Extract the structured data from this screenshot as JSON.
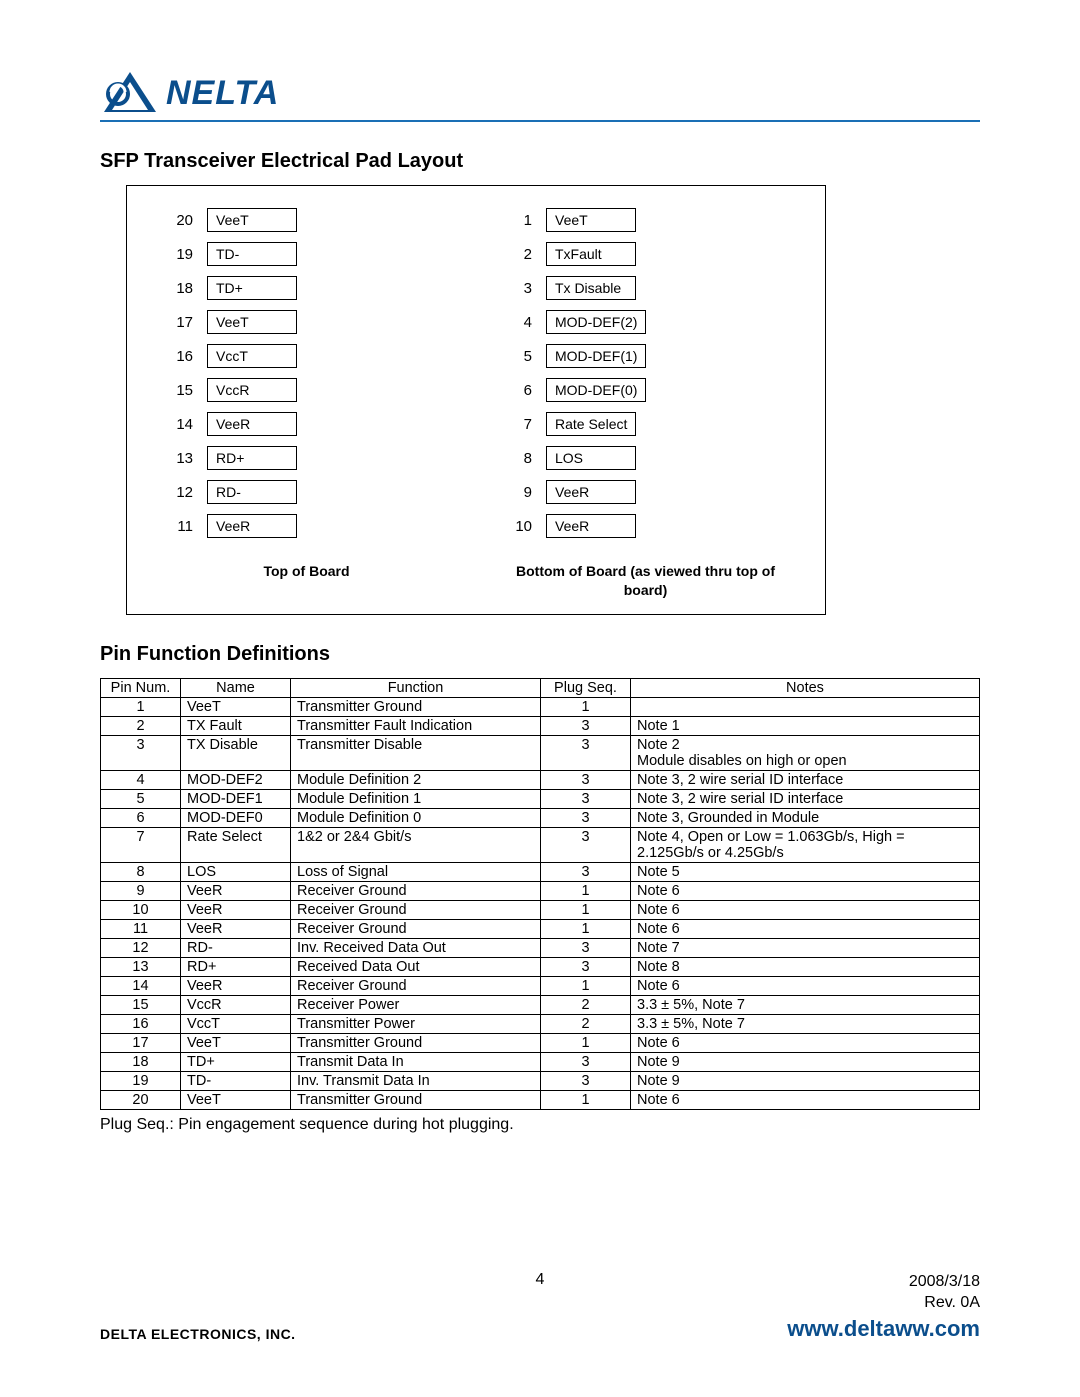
{
  "brand": {
    "name": "NELTA"
  },
  "sections": {
    "pad_layout_title": "SFP Transceiver Electrical Pad Layout",
    "pin_defs_title": "Pin Function Definitions"
  },
  "pad_layout": {
    "left_caption": "Top of Board",
    "right_caption": "Bottom of Board (as viewed thru top of board)",
    "left": [
      {
        "num": "20",
        "label": "VeeT"
      },
      {
        "num": "19",
        "label": "TD-"
      },
      {
        "num": "18",
        "label": "TD+"
      },
      {
        "num": "17",
        "label": "VeeT"
      },
      {
        "num": "16",
        "label": "VccT"
      },
      {
        "num": "15",
        "label": "VccR"
      },
      {
        "num": "14",
        "label": "VeeR"
      },
      {
        "num": "13",
        "label": "RD+"
      },
      {
        "num": "12",
        "label": "RD-"
      },
      {
        "num": "11",
        "label": "VeeR"
      }
    ],
    "right": [
      {
        "num": "1",
        "label": "VeeT"
      },
      {
        "num": "2",
        "label": "TxFault"
      },
      {
        "num": "3",
        "label": "Tx Disable"
      },
      {
        "num": "4",
        "label": "MOD-DEF(2)"
      },
      {
        "num": "5",
        "label": "MOD-DEF(1)"
      },
      {
        "num": "6",
        "label": "MOD-DEF(0)"
      },
      {
        "num": "7",
        "label": "Rate Select"
      },
      {
        "num": "8",
        "label": "LOS"
      },
      {
        "num": "9",
        "label": "VeeR"
      },
      {
        "num": "10",
        "label": "VeeR"
      }
    ]
  },
  "pin_table": {
    "columns": [
      "Pin Num.",
      "Name",
      "Function",
      "Plug Seq.",
      "Notes"
    ],
    "col_widths": [
      "80px",
      "110px",
      "250px",
      "90px",
      "auto"
    ],
    "rows": [
      [
        "1",
        "VeeT",
        "Transmitter Ground",
        "1",
        ""
      ],
      [
        "2",
        "TX Fault",
        "Transmitter Fault Indication",
        "3",
        "Note 1"
      ],
      [
        "3",
        "TX Disable",
        "Transmitter Disable",
        "3",
        "Note 2\nModule disables on high or open"
      ],
      [
        "4",
        "MOD-DEF2",
        "Module Definition 2",
        "3",
        "Note 3, 2 wire serial ID interface"
      ],
      [
        "5",
        "MOD-DEF1",
        "Module Definition 1",
        "3",
        "Note 3, 2 wire serial ID interface"
      ],
      [
        "6",
        "MOD-DEF0",
        "Module Definition 0",
        "3",
        "Note 3, Grounded in Module"
      ],
      [
        "7",
        "Rate Select",
        "1&2 or 2&4 Gbit/s",
        "3",
        "Note 4, Open or Low = 1.063Gb/s, High = 2.125Gb/s or 4.25Gb/s"
      ],
      [
        "8",
        "LOS",
        "Loss of Signal",
        "3",
        "Note 5"
      ],
      [
        "9",
        "VeeR",
        "Receiver Ground",
        "1",
        "Note 6"
      ],
      [
        "10",
        "VeeR",
        "Receiver Ground",
        "1",
        "Note 6"
      ],
      [
        "11",
        "VeeR",
        "Receiver Ground",
        "1",
        "Note 6"
      ],
      [
        "12",
        "RD-",
        "Inv. Received Data Out",
        "3",
        "Note 7"
      ],
      [
        "13",
        "RD+",
        "Received Data Out",
        "3",
        "Note 8"
      ],
      [
        "14",
        "VeeR",
        "Receiver Ground",
        "1",
        "Note 6"
      ],
      [
        "15",
        "VccR",
        "Receiver Power",
        "2",
        "3.3 ± 5%, Note 7"
      ],
      [
        "16",
        "VccT",
        "Transmitter Power",
        "2",
        "3.3 ± 5%, Note 7"
      ],
      [
        "17",
        "VeeT",
        "Transmitter Ground",
        "1",
        "Note 6"
      ],
      [
        "18",
        "TD+",
        "Transmit Data In",
        "3",
        "Note 9"
      ],
      [
        "19",
        "TD-",
        "Inv. Transmit Data In",
        "3",
        "Note 9"
      ],
      [
        "20",
        "VeeT",
        "Transmitter Ground",
        "1",
        "Note 6"
      ]
    ]
  },
  "plug_note": "Plug Seq.: Pin engagement sequence during hot plugging.",
  "footer": {
    "page_number": "4",
    "date": "2008/3/18",
    "rev": "Rev. 0A",
    "company": "DELTA ELECTRONICS, INC.",
    "url": "www.deltaww.com"
  },
  "colors": {
    "brand_blue": "#0b4e8c",
    "rule_blue": "#1a6fb5"
  }
}
